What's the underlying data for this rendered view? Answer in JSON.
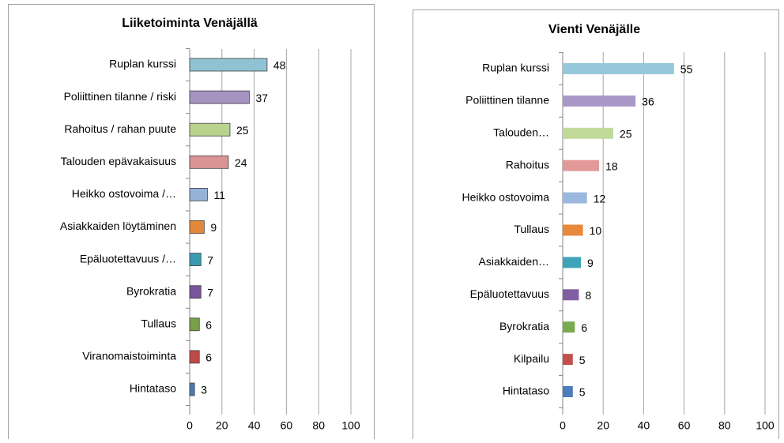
{
  "chart_data": [
    {
      "type": "bar",
      "orientation": "horizontal",
      "title": "Liiketoiminta  Venäjällä",
      "categories": [
        "Ruplan kurssi",
        "Poliittinen tilanne / riski",
        "Rahoitus / rahan puute",
        "Talouden epävakaisuus",
        "Heikko ostovoima /…",
        "Asiakkaiden löytäminen",
        "Epäluotettavuus /…",
        "Byrokratia",
        "Tullaus",
        "Viranomaistoiminta",
        "Hintataso"
      ],
      "values": [
        48,
        37,
        25,
        24,
        11,
        9,
        7,
        7,
        6,
        6,
        3
      ],
      "colors": [
        "#8fc3d3",
        "#a593c2",
        "#b9d38e",
        "#d99594",
        "#95b3d7",
        "#e4873a",
        "#3a9bb0",
        "#7a559a",
        "#77a049",
        "#be4b48",
        "#4a7ab5"
      ],
      "xlim": [
        0,
        100
      ],
      "xticks": [
        0,
        20,
        40,
        60,
        80,
        100
      ],
      "grid": true
    },
    {
      "type": "bar",
      "orientation": "horizontal",
      "title": "Vienti  Venäjälle",
      "categories": [
        "Ruplan kurssi",
        "Poliittinen tilanne",
        "Talouden…",
        "Rahoitus",
        "Heikko ostovoima",
        "Tullaus",
        "Asiakkaiden…",
        "Epäluotettavuus",
        "Byrokratia",
        "Kilpailu",
        "Hintataso"
      ],
      "values": [
        55,
        36,
        25,
        18,
        12,
        10,
        9,
        8,
        6,
        5,
        5
      ],
      "colors": [
        "#95c9da",
        "#aa98c8",
        "#c1d99a",
        "#e39997",
        "#9bb8de",
        "#e8883a",
        "#3fa4b9",
        "#8060a3",
        "#7aaa4f",
        "#c24f4c",
        "#4b7dbc"
      ],
      "xlim": [
        0,
        100
      ],
      "xticks": [
        0,
        20,
        40,
        60,
        80,
        100
      ],
      "grid": true
    }
  ]
}
